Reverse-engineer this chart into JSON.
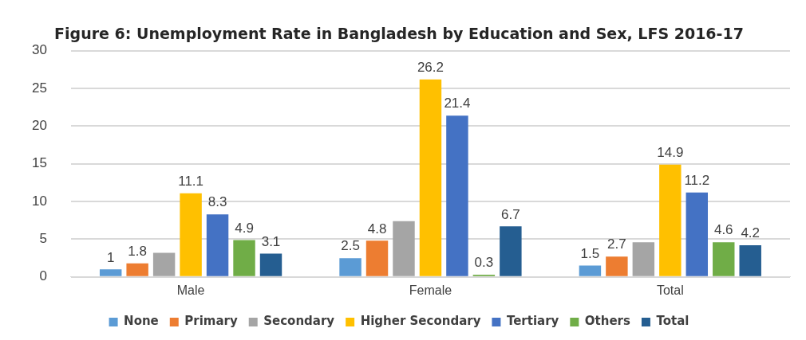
{
  "chart_data": {
    "type": "bar",
    "title": "Figure 6: Unemployment Rate in Bangladesh by Education and Sex, LFS 2016-17",
    "categories": [
      "Male",
      "Female",
      "Total"
    ],
    "ylim": [
      0,
      30
    ],
    "yticks": [
      0,
      5,
      10,
      15,
      20,
      25,
      30
    ],
    "grid": "y",
    "legend": "bottom",
    "series": [
      {
        "name": "None",
        "color": "#5b9bd5",
        "values": [
          1,
          2.5,
          1.5
        ],
        "value_labels": [
          "1",
          "2.5",
          "1.5"
        ]
      },
      {
        "name": "Primary",
        "color": "#ed7d31",
        "values": [
          1.8,
          4.8,
          2.7
        ],
        "value_labels": [
          "1.8",
          "4.8",
          "2.7"
        ]
      },
      {
        "name": "Secondary",
        "color": "#a5a5a5",
        "values": [
          3.2,
          7.4,
          4.6
        ],
        "value_labels": [
          null,
          null,
          null
        ]
      },
      {
        "name": "Higher Secondary",
        "color": "#ffc000",
        "values": [
          11.1,
          26.2,
          14.9
        ],
        "value_labels": [
          "11.1",
          "26.2",
          "14.9"
        ]
      },
      {
        "name": "Tertiary",
        "color": "#4472c4",
        "values": [
          8.3,
          21.4,
          11.2
        ],
        "value_labels": [
          "8.3",
          "21.4",
          "11.2"
        ]
      },
      {
        "name": "Others",
        "color": "#70ad47",
        "values": [
          4.9,
          0.3,
          4.6
        ],
        "value_labels": [
          "4.9",
          "0.3",
          "4.6"
        ]
      },
      {
        "name": "Total",
        "color": "#255e91",
        "values": [
          3.1,
          6.7,
          4.2
        ],
        "value_labels": [
          "3.1",
          "6.7",
          "4.2"
        ]
      }
    ]
  }
}
